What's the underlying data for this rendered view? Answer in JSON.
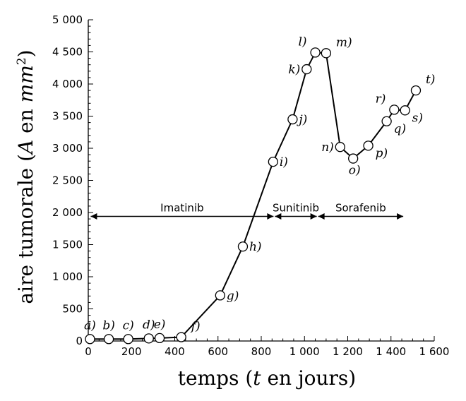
{
  "chart_data": {
    "type": "line",
    "xlabel_parts": [
      "temps (",
      "t",
      " en jours)"
    ],
    "ylabel_parts": [
      "aire tumorale (",
      "A",
      " en ",
      "mm",
      "2",
      ")"
    ],
    "xlim": [
      0,
      1600
    ],
    "ylim": [
      0,
      5000
    ],
    "xticks": [
      {
        "value": 0,
        "label": "0"
      },
      {
        "value": 200,
        "label": "200"
      },
      {
        "value": 400,
        "label": "400"
      },
      {
        "value": 600,
        "label": "600"
      },
      {
        "value": 800,
        "label": "800"
      },
      {
        "value": 1000,
        "label": "1 000"
      },
      {
        "value": 1200,
        "label": "1 200"
      },
      {
        "value": 1400,
        "label": "1 400"
      },
      {
        "value": 1600,
        "label": "1 600"
      }
    ],
    "yticks": [
      {
        "value": 0,
        "label": "0"
      },
      {
        "value": 500,
        "label": "500"
      },
      {
        "value": 1000,
        "label": "1 000"
      },
      {
        "value": 1500,
        "label": "1 500"
      },
      {
        "value": 2000,
        "label": "2 000"
      },
      {
        "value": 2500,
        "label": "2 500"
      },
      {
        "value": 3000,
        "label": "3 000"
      },
      {
        "value": 3500,
        "label": "3 500"
      },
      {
        "value": 4000,
        "label": "4 000"
      },
      {
        "value": 4500,
        "label": "4 500"
      },
      {
        "value": 5000,
        "label": "5 000"
      }
    ],
    "points": [
      {
        "label": "a)",
        "x": 8,
        "y": 30,
        "label_pos": "above"
      },
      {
        "label": "b)",
        "x": 95,
        "y": 30,
        "label_pos": "above"
      },
      {
        "label": "c)",
        "x": 185,
        "y": 30,
        "label_pos": "above"
      },
      {
        "label": "d)",
        "x": 280,
        "y": 40,
        "label_pos": "above"
      },
      {
        "label": "e)",
        "x": 330,
        "y": 45,
        "label_pos": "above"
      },
      {
        "label": "f)",
        "x": 430,
        "y": 60,
        "label_pos": "above-right"
      },
      {
        "label": "g)",
        "x": 610,
        "y": 710,
        "label_pos": "right"
      },
      {
        "label": "h)",
        "x": 715,
        "y": 1470,
        "label_pos": "right"
      },
      {
        "label": "i)",
        "x": 855,
        "y": 2790,
        "label_pos": "right"
      },
      {
        "label": "j)",
        "x": 945,
        "y": 3450,
        "label_pos": "right"
      },
      {
        "label": "k)",
        "x": 1010,
        "y": 4230,
        "label_pos": "left"
      },
      {
        "label": "l)",
        "x": 1050,
        "y": 4490,
        "label_pos": "above-left"
      },
      {
        "label": "m)",
        "x": 1100,
        "y": 4480,
        "label_pos": "above-right"
      },
      {
        "label": "n)",
        "x": 1165,
        "y": 3020,
        "label_pos": "left"
      },
      {
        "label": "o)",
        "x": 1225,
        "y": 2840,
        "label_pos": "below"
      },
      {
        "label": "p)",
        "x": 1295,
        "y": 3040,
        "label_pos": "below-right"
      },
      {
        "label": "q)",
        "x": 1380,
        "y": 3420,
        "label_pos": "below-right"
      },
      {
        "label": "r)",
        "x": 1415,
        "y": 3600,
        "label_pos": "above-left"
      },
      {
        "label": "s)",
        "x": 1465,
        "y": 3590,
        "label_pos": "below-right"
      },
      {
        "label": "t)",
        "x": 1515,
        "y": 3900,
        "label_pos": "above-right"
      }
    ],
    "therapies": [
      {
        "name": "Imatinib",
        "start": 8,
        "end": 860
      },
      {
        "name": "Sunitinib",
        "start": 860,
        "end": 1060
      },
      {
        "name": "Sorafenib",
        "start": 1060,
        "end": 1460
      }
    ],
    "therapy_y": 1940,
    "grid": false,
    "legend": "none"
  }
}
